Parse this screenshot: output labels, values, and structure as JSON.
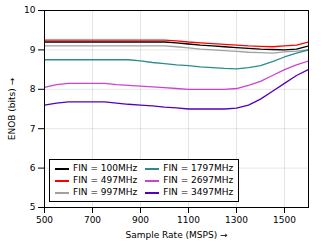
{
  "chart_data": {
    "type": "line",
    "xlabel": "Sample Rate (MSPS)",
    "ylabel": "ENOB (bits)",
    "xlim": [
      500,
      1600
    ],
    "ylim": [
      5,
      10
    ],
    "xticks": [
      500,
      700,
      900,
      1100,
      1300,
      1500
    ],
    "yticks": [
      5,
      6,
      7,
      8,
      9,
      10
    ],
    "grid": true,
    "legend": "lower left",
    "x": [
      500,
      550,
      600,
      650,
      700,
      750,
      800,
      850,
      900,
      950,
      1000,
      1050,
      1100,
      1150,
      1200,
      1250,
      1300,
      1350,
      1400,
      1450,
      1500,
      1550,
      1600
    ],
    "series": [
      {
        "name": "FIN = 100MHz",
        "color": "#000000",
        "values": [
          9.2,
          9.2,
          9.2,
          9.2,
          9.2,
          9.2,
          9.2,
          9.2,
          9.2,
          9.2,
          9.2,
          9.18,
          9.15,
          9.12,
          9.1,
          9.08,
          9.06,
          9.04,
          9.02,
          9.01,
          9.0,
          9.02,
          9.1
        ]
      },
      {
        "name": "FIN = 497MHz",
        "color": "#ff0000",
        "values": [
          9.25,
          9.25,
          9.25,
          9.25,
          9.25,
          9.25,
          9.25,
          9.25,
          9.25,
          9.25,
          9.25,
          9.23,
          9.2,
          9.18,
          9.16,
          9.14,
          9.12,
          9.1,
          9.09,
          9.08,
          9.1,
          9.12,
          9.2
        ]
      },
      {
        "name": "FIN = 997MHz",
        "color": "#a0a0a0",
        "values": [
          9.1,
          9.1,
          9.1,
          9.1,
          9.1,
          9.1,
          9.1,
          9.1,
          9.1,
          9.1,
          9.1,
          9.08,
          9.05,
          9.02,
          9.0,
          8.98,
          8.96,
          8.94,
          8.93,
          8.92,
          8.95,
          8.97,
          9.0
        ]
      },
      {
        "name": "FIN = 1797MHz",
        "color": "#2e8b8b",
        "values": [
          8.75,
          8.75,
          8.75,
          8.75,
          8.75,
          8.75,
          8.75,
          8.75,
          8.72,
          8.68,
          8.65,
          8.62,
          8.6,
          8.57,
          8.55,
          8.53,
          8.52,
          8.55,
          8.6,
          8.7,
          8.82,
          8.92,
          9.0
        ]
      },
      {
        "name": "FIN = 2697MHz",
        "color": "#cc44cc",
        "values": [
          8.05,
          8.12,
          8.15,
          8.15,
          8.15,
          8.15,
          8.12,
          8.1,
          8.08,
          8.06,
          8.04,
          8.02,
          8.0,
          8.0,
          8.0,
          8.0,
          8.02,
          8.1,
          8.2,
          8.35,
          8.5,
          8.62,
          8.72
        ]
      },
      {
        "name": "FIN = 3497MHz",
        "color": "#5500bb",
        "values": [
          7.6,
          7.65,
          7.68,
          7.68,
          7.68,
          7.68,
          7.65,
          7.62,
          7.6,
          7.58,
          7.55,
          7.53,
          7.5,
          7.5,
          7.5,
          7.5,
          7.52,
          7.6,
          7.75,
          7.95,
          8.15,
          8.35,
          8.5
        ]
      }
    ]
  }
}
